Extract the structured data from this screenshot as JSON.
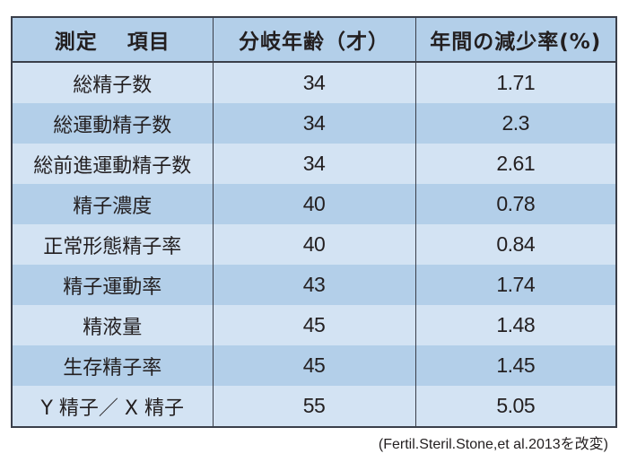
{
  "table": {
    "headers": [
      "測定　 項目",
      "分岐年齢（才）",
      "年間の減少率(%)"
    ],
    "rows": [
      {
        "item": "総精子数",
        "age": "34",
        "rate": "1.71"
      },
      {
        "item": "総運動精子数",
        "age": "34",
        "rate": "2.3"
      },
      {
        "item": "総前進運動精子数",
        "age": "34",
        "rate": "2.61"
      },
      {
        "item": "精子濃度",
        "age": "40",
        "rate": "0.78"
      },
      {
        "item": "正常形態精子率",
        "age": "40",
        "rate": "0.84"
      },
      {
        "item": "精子運動率",
        "age": "43",
        "rate": "1.74"
      },
      {
        "item": "精液量",
        "age": "45",
        "rate": "1.48"
      },
      {
        "item": "生存精子率",
        "age": "45",
        "rate": "1.45"
      },
      {
        "item": "Y 精子／ X 精子",
        "age": "55",
        "rate": "5.05"
      }
    ]
  },
  "source": "(Fertil.Steril.Stone,et al.2013を改変)",
  "colors": {
    "header_bg": "#b3cfe9",
    "row_light": "#d3e3f3",
    "row_dark": "#b3cfe9",
    "border": "#3a3f4a"
  }
}
